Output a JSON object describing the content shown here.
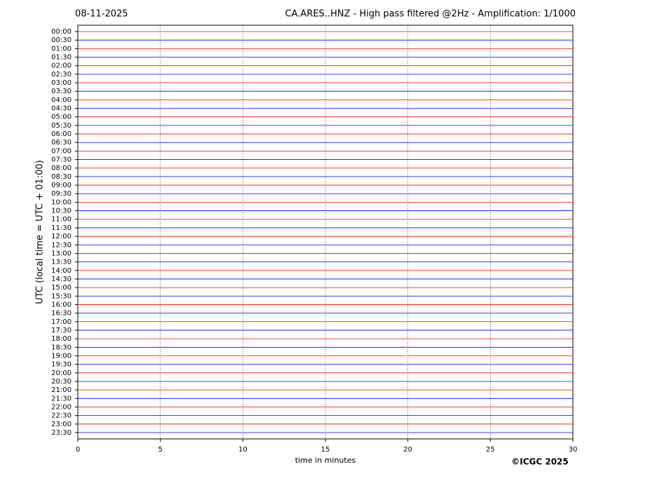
{
  "chart_data": {
    "type": "helicorder",
    "date": "08-11-2025",
    "title": "CA.ARES..HNZ - High pass filtered @2Hz - Amplification: 1/1000",
    "x_label": "time in minutes",
    "y_label": "UTC (local time = UTC + 01:00)",
    "credit": "©ICGC 2025",
    "categories": [
      "00:00",
      "00:30",
      "01:00",
      "01:30",
      "02:00",
      "02:30",
      "03:00",
      "03:30",
      "04:00",
      "04:30",
      "05:00",
      "05:30",
      "06:00",
      "06:30",
      "07:00",
      "07:30",
      "08:00",
      "08:30",
      "09:00",
      "09:30",
      "10:00",
      "10:30",
      "11:00",
      "11:30",
      "12:00",
      "12:30",
      "13:00",
      "13:30",
      "14:00",
      "14:30",
      "15:00",
      "15:30",
      "16:00",
      "16:30",
      "17:00",
      "17:30",
      "18:00",
      "18:30",
      "19:00",
      "19:30",
      "20:00",
      "20:30",
      "21:00",
      "21:30",
      "22:00",
      "22:30",
      "23:00",
      "23:30"
    ],
    "colors": [
      "#ff0000",
      "#0000ff"
    ],
    "xlim": [
      0,
      30
    ],
    "xticks": [
      0,
      5,
      10,
      15,
      20,
      25,
      30
    ],
    "grid": true
  }
}
